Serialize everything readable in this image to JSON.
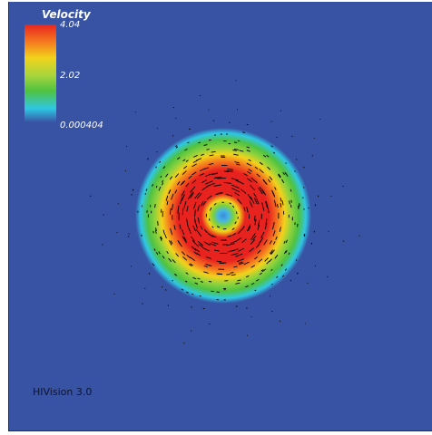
{
  "legend": {
    "title": "Velocity",
    "ticks": {
      "max": "4.04",
      "mid": "2.02",
      "min": "0.000404"
    },
    "gradient_colors": [
      "#e8231f",
      "#f57a1f",
      "#f2d21c",
      "#a8d53c",
      "#4fc241",
      "#2fc7e4",
      "#3853a4"
    ]
  },
  "footer": {
    "label": "HIVision 3.0"
  },
  "colors": {
    "background": "#3853a4",
    "ring_outer": "#2fc7e4",
    "ring_green": "#4fc241",
    "ring_yellow": "#f2d21c",
    "ring_orange": "#f57a1f",
    "ring_red": "#e8231f",
    "core": "#3a8ad8",
    "vectors": "#000000"
  }
}
